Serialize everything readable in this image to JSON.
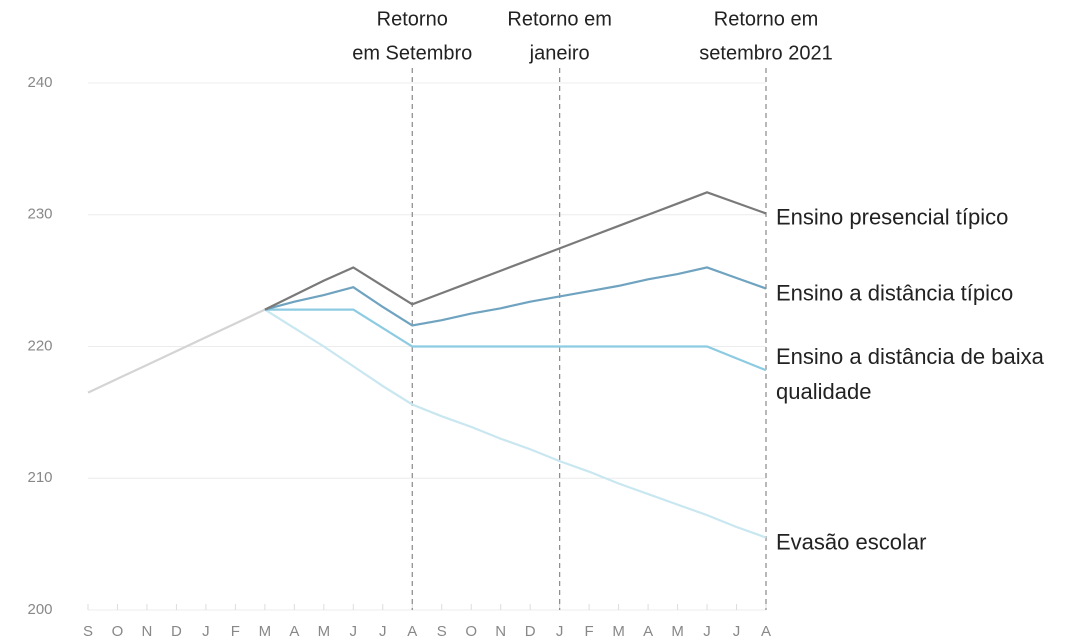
{
  "chart_data": {
    "type": "line",
    "categories": [
      "S",
      "O",
      "N",
      "D",
      "J",
      "F",
      "M",
      "A",
      "M",
      "J",
      "J",
      "A",
      "S",
      "O",
      "N",
      "D",
      "J",
      "F",
      "M",
      "A",
      "M",
      "J",
      "J",
      "A"
    ],
    "ylim": [
      200,
      240
    ],
    "yticks": [
      200,
      210,
      220,
      230,
      240
    ],
    "grid": true,
    "annotations": [
      {
        "index": 11,
        "text": [
          "Retorno",
          "em Setembro"
        ]
      },
      {
        "index": 16,
        "text": [
          "Retorno em",
          "janeiro"
        ]
      },
      {
        "index": 23,
        "text": [
          "Retorno em",
          "setembro 2021"
        ]
      }
    ],
    "baseline": {
      "color": "#d4d4d4",
      "values": [
        216.5,
        217.55,
        218.6,
        219.65,
        220.7,
        221.75,
        222.8,
        null,
        null,
        null,
        null,
        null,
        null,
        null,
        null,
        null,
        null,
        null,
        null,
        null,
        null,
        null,
        null,
        null
      ]
    },
    "series": [
      {
        "name": "Ensino presencial típico",
        "color": "#7a7a7a",
        "values": [
          null,
          null,
          null,
          null,
          null,
          null,
          222.8,
          223.9,
          225.0,
          226.0,
          224.6,
          223.2,
          224.05,
          224.9,
          225.75,
          226.6,
          227.45,
          228.3,
          229.15,
          230.0,
          230.85,
          231.7,
          230.9,
          230.1
        ]
      },
      {
        "name": "Ensino a distância típico",
        "color": "#6fa3c0",
        "values": [
          null,
          null,
          null,
          null,
          null,
          null,
          222.8,
          223.4,
          223.9,
          224.5,
          223.0,
          221.6,
          222.0,
          222.5,
          222.9,
          223.4,
          223.8,
          224.2,
          224.6,
          225.1,
          225.5,
          226.0,
          225.2,
          224.4
        ]
      },
      {
        "name": "Ensino a distância de baixa qualidade",
        "color": "#8ccbe2",
        "values": [
          null,
          null,
          null,
          null,
          null,
          null,
          222.8,
          222.8,
          222.8,
          222.8,
          221.4,
          220.0,
          220.0,
          220.0,
          220.0,
          220.0,
          220.0,
          220.0,
          220.0,
          220.0,
          220.0,
          220.0,
          219.1,
          218.2
        ]
      },
      {
        "name": "Evasão escolar",
        "color": "#c9e7f0",
        "values": [
          null,
          null,
          null,
          null,
          null,
          null,
          222.8,
          221.4,
          220.0,
          218.5,
          217.0,
          215.6,
          214.7,
          213.9,
          213.0,
          212.2,
          211.3,
          210.5,
          209.6,
          208.8,
          208.0,
          207.2,
          206.3,
          205.5
        ]
      }
    ]
  }
}
